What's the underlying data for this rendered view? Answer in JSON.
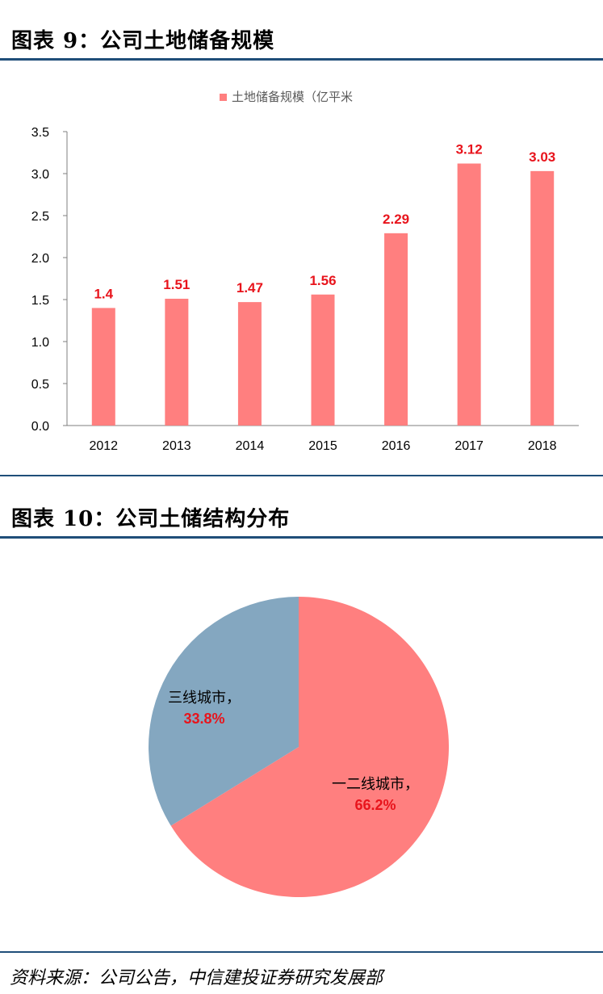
{
  "figure1": {
    "title": "图表 9：公司土地储备规模"
  },
  "figure2": {
    "title": "图表 10：公司土储结构分布"
  },
  "source": "资料来源：公司公告，中信建投证券研究发展部",
  "colors": {
    "bar": "#ff7f7f",
    "label": "#e8141c",
    "pie_a": "#ff7f7f",
    "pie_b": "#84a7c0",
    "rule": "#1f4e79"
  },
  "chart_data": [
    {
      "type": "bar",
      "title": "",
      "legend": "土地储备规模（亿平米",
      "legend_position": "top",
      "categories": [
        "2012",
        "2013",
        "2014",
        "2015",
        "2016",
        "2017",
        "2018"
      ],
      "series": [
        {
          "name": "土地储备规模（亿平米",
          "values": [
            1.4,
            1.51,
            1.47,
            1.56,
            2.29,
            3.12,
            3.03
          ]
        }
      ],
      "data_labels": [
        "1.4",
        "1.51",
        "1.47",
        "1.56",
        "2.29",
        "3.12",
        "3.03"
      ],
      "ylim": [
        0,
        3.5
      ],
      "yticks": [
        "0.0",
        "0.5",
        "1.0",
        "1.5",
        "2.0",
        "2.5",
        "3.0",
        "3.5"
      ],
      "grid": false
    },
    {
      "type": "pie",
      "slices": [
        {
          "label": "一二线城市，",
          "value": 66.2,
          "pct_text": "66.2%"
        },
        {
          "label": "三线城市，",
          "value": 33.8,
          "pct_text": "33.8%"
        }
      ]
    }
  ]
}
